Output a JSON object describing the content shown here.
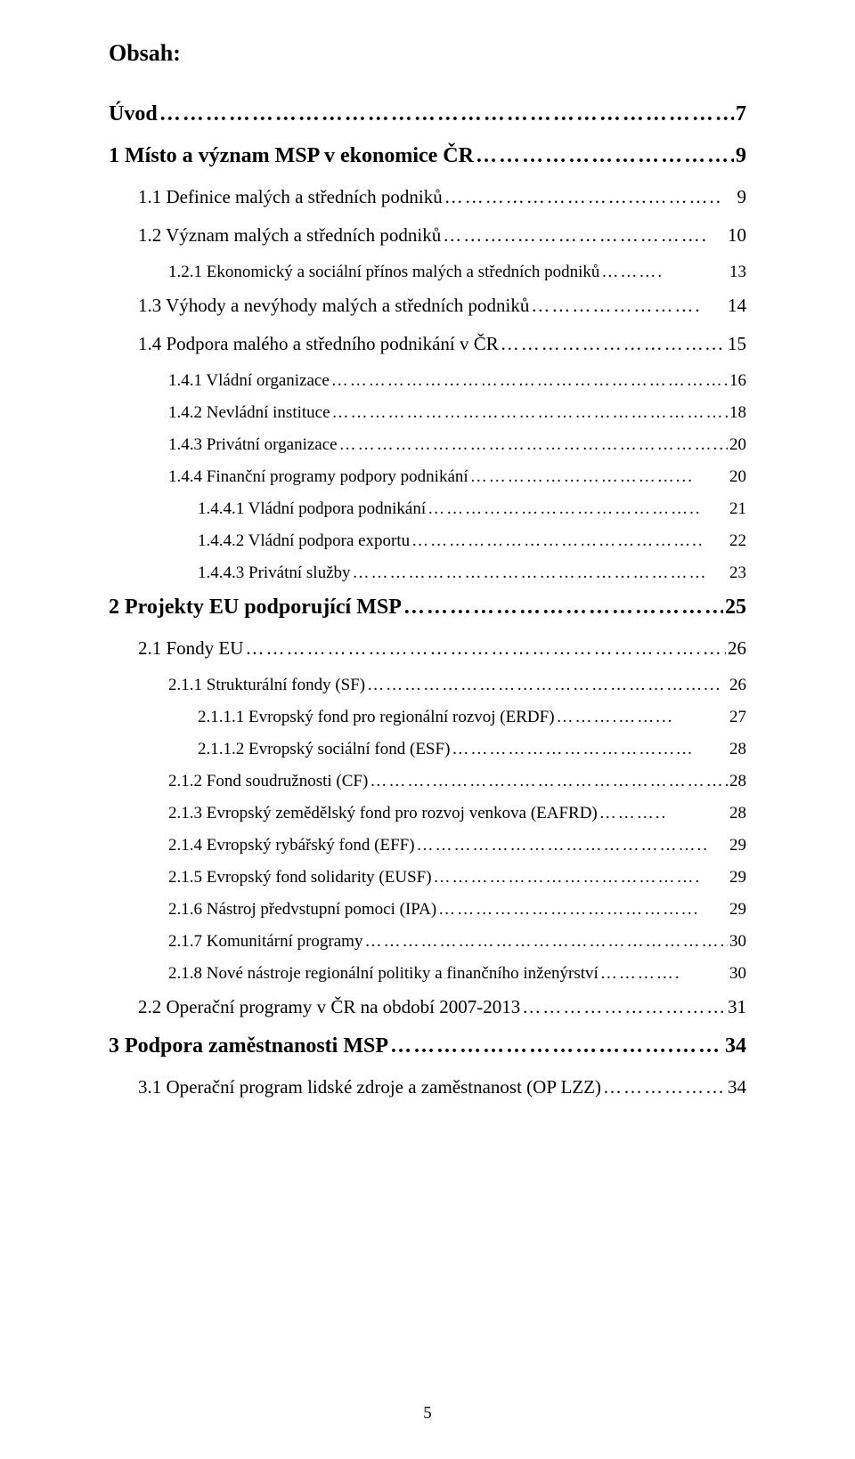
{
  "heading": "Obsah:",
  "pageNumber": "5",
  "lines": [
    {
      "label": "Úvod",
      "leader": "…………………………………………………………………………...……",
      "page": "7",
      "bold": true,
      "fs": 24,
      "ind": 0,
      "mb": "mb-20"
    },
    {
      "label": "1 Místo a význam MSP v ekonomice ČR",
      "leader": "…………………………….……...",
      "page": "9",
      "bold": true,
      "fs": 24,
      "ind": 0,
      "mb": "mb-20"
    },
    {
      "label": "1.1 Definice malých a středních podniků",
      "leader": "………………………...………..",
      "page": "9",
      "bold": false,
      "fs": 21,
      "ind": 1,
      "mb": "mb-18"
    },
    {
      "label": "1.2 Význam malých a středních podniků",
      "leader": "………..……………………….",
      "page": "10",
      "bold": false,
      "fs": 21,
      "ind": 1,
      "mb": "mb-18"
    },
    {
      "label": "1.2.1 Ekonomický a sociální přínos malých a středních podniků",
      "leader": "……….",
      "page": "13",
      "bold": false,
      "fs": 19,
      "ind": 2,
      "mb": ""
    },
    {
      "label": "1.3 Výhody a nevýhody malých a středních podniků",
      "leader": "…………………….",
      "page": "14",
      "bold": false,
      "fs": 21,
      "ind": 1,
      "mb": "mb-18"
    },
    {
      "label": "1.4 Podpora malého a středního podnikání v ČR",
      "leader": "…………………………...",
      "page": "15",
      "bold": false,
      "fs": 21,
      "ind": 1,
      "mb": "mb-18"
    },
    {
      "label": "1.4.1 Vládní organizace",
      "leader": "……………………………………………………….",
      "page": "16",
      "bold": false,
      "fs": 19,
      "ind": 2,
      "mb": ""
    },
    {
      "label": "1.4.2 Nevládní instituce",
      "leader": "……………………………………………………….",
      "page": "18",
      "bold": false,
      "fs": 19,
      "ind": 2,
      "mb": ""
    },
    {
      "label": "1.4.3 Privátní organizace",
      "leader": "……………………………………………………...",
      "page": "20",
      "bold": false,
      "fs": 19,
      "ind": 2,
      "mb": ""
    },
    {
      "label": "1.4.4 Finanční programy podpory podnikání",
      "leader": "……………………………...",
      "page": "20",
      "bold": false,
      "fs": 19,
      "ind": 2,
      "mb": ""
    },
    {
      "label": "1.4.4.1 Vládní podpora podnikání",
      "leader": "……………………………………..",
      "page": "21",
      "bold": false,
      "fs": 19,
      "ind": 3,
      "mb": ""
    },
    {
      "label": "1.4.4.2 Vládní podpora exportu",
      "leader": "………………………………………..",
      "page": "22",
      "bold": false,
      "fs": 19,
      "ind": 3,
      "mb": ""
    },
    {
      "label": "1.4.4.3 Privátní služby",
      "leader": "…………………………………………………",
      "page": "23",
      "bold": false,
      "fs": 19,
      "ind": 3,
      "mb": ""
    },
    {
      "label": "2 Projekty EU podporující MSP",
      "leader": "…………………………………………..",
      "page": "25",
      "bold": true,
      "fs": 24,
      "ind": 0,
      "mb": "mb-20"
    },
    {
      "label": "2.1 Fondy EU",
      "leader": "………………………………………………………….……...…",
      "page": "26",
      "bold": false,
      "fs": 21,
      "ind": 1,
      "mb": "mb-18"
    },
    {
      "label": "2.1.1 Strukturální fondy (SF)",
      "leader": "………………………………………………...",
      "page": "26",
      "bold": false,
      "fs": 19,
      "ind": 2,
      "mb": ""
    },
    {
      "label": "2.1.1.1 Evropský fond pro regionální rozvoj (ERDF)",
      "leader": "……….……...",
      "page": "27",
      "bold": false,
      "fs": 19,
      "ind": 3,
      "mb": ""
    },
    {
      "label": "2.1.1.2 Evropský sociální fond (ESF)",
      "leader": "……………………………...…",
      "page": "28",
      "bold": false,
      "fs": 19,
      "ind": 3,
      "mb": ""
    },
    {
      "label": "2.1.2 Fond soudružnosti (CF)",
      "leader": "……….…………..…………………………….",
      "page": "28",
      "bold": false,
      "fs": 19,
      "ind": 2,
      "mb": ""
    },
    {
      "label": "2.1.3 Evropský zemědělský fond pro rozvoj venkova (EAFRD)",
      "leader": "………..",
      "page": "28",
      "bold": false,
      "fs": 19,
      "ind": 2,
      "mb": ""
    },
    {
      "label": "2.1.4 Evropský rybářský fond (EFF)",
      "leader": "………………………………………..",
      "page": "29",
      "bold": false,
      "fs": 19,
      "ind": 2,
      "mb": ""
    },
    {
      "label": "2.1.5 Evropský fond solidarity (EUSF)",
      "leader": "…………………………………….",
      "page": "29",
      "bold": false,
      "fs": 19,
      "ind": 2,
      "mb": ""
    },
    {
      "label": "2.1.6 Nástroj předvstupní pomoci (IPA)",
      "leader": "…………………………………...",
      "page": "29",
      "bold": false,
      "fs": 19,
      "ind": 2,
      "mb": ""
    },
    {
      "label": "2.1.7 Komunitární programy",
      "leader": "…………………………………………………..",
      "page": "30",
      "bold": false,
      "fs": 19,
      "ind": 2,
      "mb": ""
    },
    {
      "label": "2.1.8 Nové nástroje regionální politiky a finančního inženýrství",
      "leader": "………….",
      "page": "30",
      "bold": false,
      "fs": 19,
      "ind": 2,
      "mb": ""
    },
    {
      "label": "2.2 Operační programy v ČR na období 2007-2013",
      "leader": "…………………………..",
      "page": "31",
      "bold": false,
      "fs": 21,
      "ind": 1,
      "mb": "mb-18"
    },
    {
      "label": "3 Podpora zaměstnanosti MSP",
      "leader": "……………………………….…………….",
      "page": "34",
      "bold": true,
      "fs": 24,
      "ind": 0,
      "mb": "mb-20"
    },
    {
      "label": "3.1 Operační program lidské zdroje a zaměstnanost (OP LZZ)",
      "leader": "……………….",
      "page": "34",
      "bold": false,
      "fs": 21,
      "ind": 1,
      "mb": ""
    }
  ]
}
